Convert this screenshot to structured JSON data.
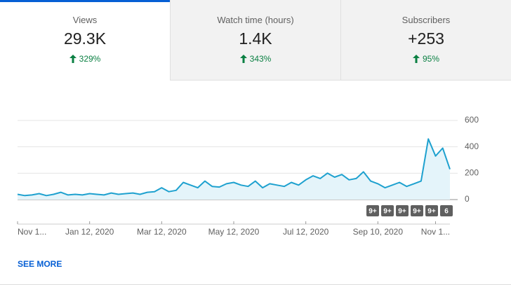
{
  "tabs": [
    {
      "label": "Views",
      "value": "29.3K",
      "change": "329%"
    },
    {
      "label": "Watch time (hours)",
      "value": "1.4K",
      "change": "343%"
    },
    {
      "label": "Subscribers",
      "value": "+253",
      "change": "95%"
    }
  ],
  "chart_data": {
    "type": "line",
    "categories": [
      "Nov 1...",
      null,
      null,
      null,
      null,
      null,
      null,
      null,
      null,
      null,
      "Jan 12, 2020",
      null,
      null,
      null,
      null,
      null,
      null,
      null,
      null,
      null,
      "Mar 12, 2020",
      null,
      null,
      null,
      null,
      null,
      null,
      null,
      null,
      null,
      "May 12, 2020",
      null,
      null,
      null,
      null,
      null,
      null,
      null,
      null,
      null,
      "Jul 12, 2020",
      null,
      null,
      null,
      null,
      null,
      null,
      null,
      null,
      null,
      "Sep 10, 2020",
      null,
      null,
      null,
      null,
      null,
      null,
      null,
      "Nov 1...",
      null,
      null
    ],
    "values": [
      40,
      30,
      35,
      45,
      30,
      40,
      55,
      35,
      40,
      35,
      45,
      40,
      35,
      50,
      40,
      45,
      50,
      40,
      55,
      60,
      90,
      60,
      70,
      130,
      110,
      90,
      140,
      100,
      95,
      120,
      130,
      110,
      100,
      140,
      90,
      120,
      110,
      100,
      130,
      110,
      150,
      180,
      160,
      200,
      170,
      190,
      150,
      160,
      210,
      140,
      120,
      90,
      110,
      130,
      100,
      120,
      140,
      460,
      330,
      390,
      230
    ],
    "color": "#1ea1cf",
    "ylim": [
      0,
      600
    ],
    "yticks": [
      0,
      200,
      400,
      600
    ],
    "grid": true,
    "markers": [
      "9+",
      "9+",
      "9+",
      "9+",
      "9+",
      "6"
    ]
  },
  "see_more": "SEE MORE"
}
